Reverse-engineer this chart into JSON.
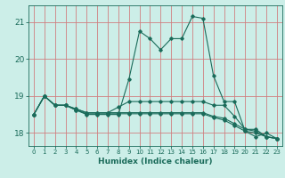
{
  "xlabel": "Humidex (Indice chaleur)",
  "bg_color": "#cceee8",
  "grid_color": "#d08080",
  "line_color": "#1a6b5a",
  "xlim": [
    -0.5,
    23.5
  ],
  "ylim": [
    17.65,
    21.45
  ],
  "yticks": [
    18,
    19,
    20,
    21
  ],
  "xticks": [
    0,
    1,
    2,
    3,
    4,
    5,
    6,
    7,
    8,
    9,
    10,
    11,
    12,
    13,
    14,
    15,
    16,
    17,
    18,
    19,
    20,
    21,
    22,
    23
  ],
  "series1": [
    18.5,
    19.0,
    18.75,
    18.75,
    18.62,
    18.5,
    18.5,
    18.5,
    18.5,
    19.45,
    20.75,
    20.55,
    20.25,
    20.55,
    20.55,
    21.15,
    21.1,
    19.55,
    18.85,
    18.85,
    18.05,
    17.9,
    18.0,
    17.85
  ],
  "series2": [
    18.5,
    19.0,
    18.75,
    18.75,
    18.65,
    18.55,
    18.55,
    18.55,
    18.7,
    18.85,
    18.85,
    18.85,
    18.85,
    18.85,
    18.85,
    18.85,
    18.85,
    18.75,
    18.75,
    18.45,
    18.1,
    18.1,
    17.9,
    17.85
  ],
  "series3": [
    18.5,
    19.0,
    18.75,
    18.75,
    18.62,
    18.52,
    18.52,
    18.52,
    18.52,
    18.52,
    18.52,
    18.52,
    18.52,
    18.52,
    18.52,
    18.52,
    18.52,
    18.42,
    18.35,
    18.2,
    18.05,
    18.0,
    17.9,
    17.85
  ],
  "series4": [
    18.5,
    19.0,
    18.75,
    18.75,
    18.65,
    18.55,
    18.55,
    18.55,
    18.55,
    18.55,
    18.55,
    18.55,
    18.55,
    18.55,
    18.55,
    18.55,
    18.55,
    18.45,
    18.4,
    18.25,
    18.1,
    18.05,
    17.9,
    17.85
  ]
}
